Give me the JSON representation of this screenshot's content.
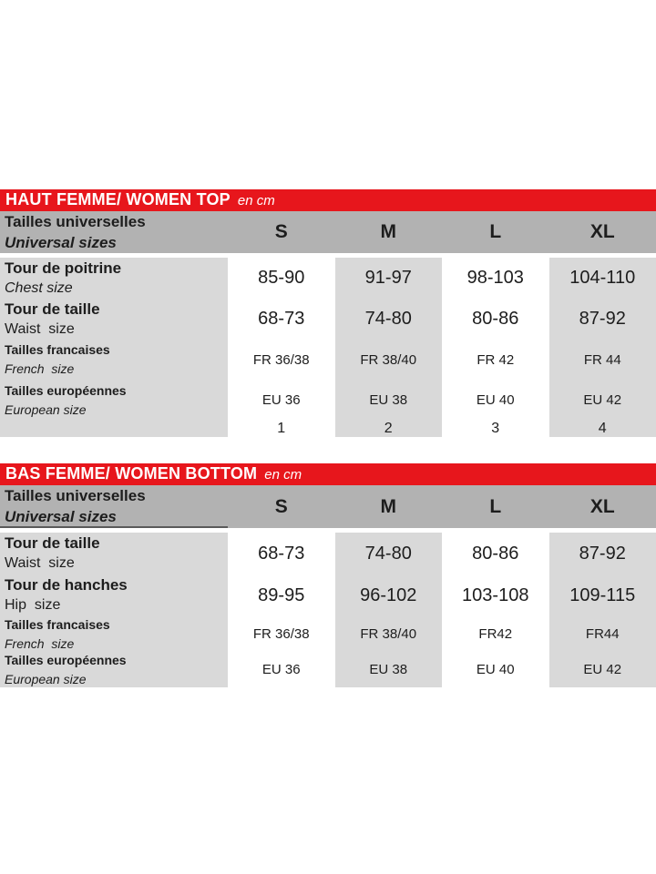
{
  "colors": {
    "red": "#e7161c",
    "header_gray": "#b2b2b2",
    "cell_gray": "#d9d9d9",
    "text": "#1d1d1d",
    "page_bg": "#ffffff"
  },
  "table_top": {
    "title": "HAUT FEMME/ WOMEN TOP",
    "unit": "en cm",
    "header": {
      "label_fr": "Tailles universelles",
      "label_en": "Universal sizes",
      "sizes": [
        "S",
        "M",
        "L",
        "XL"
      ]
    },
    "rows": [
      {
        "fr": "Tour de poitrine",
        "en": "Chest size",
        "values": [
          "85-90",
          "91-97",
          "98-103",
          "104-110"
        ]
      },
      {
        "fr": "Tour de taille",
        "en": "Waist  size",
        "values": [
          "68-73",
          "74-80",
          "80-86",
          "87-92"
        ]
      },
      {
        "fr": "Tailles francaises",
        "en": "French  size",
        "values": [
          "FR 36/38",
          "FR 38/40",
          "FR 42",
          "FR 44"
        ]
      },
      {
        "fr": "Tailles européennes",
        "en": "European size",
        "values": [
          "EU 36",
          "EU 38",
          "EU 40",
          "EU 42"
        ]
      }
    ],
    "numbers": [
      "1",
      "2",
      "3",
      "4"
    ]
  },
  "table_bottom": {
    "title": "BAS FEMME/ WOMEN BOTTOM",
    "unit": "en cm",
    "header": {
      "label_fr": "Tailles universelles",
      "label_en": "Universal sizes",
      "sizes": [
        "S",
        "M",
        "L",
        "XL"
      ]
    },
    "rows": [
      {
        "fr": "Tour de taille",
        "en": "Waist  size",
        "values": [
          "68-73",
          "74-80",
          "80-86",
          "87-92"
        ]
      },
      {
        "fr": "Tour de hanches",
        "en": "Hip  size",
        "values": [
          "89-95",
          "96-102",
          "103-108",
          "109-115"
        ]
      },
      {
        "fr": "Tailles francaises",
        "en": "French  size",
        "values": [
          "FR 36/38",
          "FR 38/40",
          "FR42",
          "FR44"
        ]
      },
      {
        "fr": "Tailles européennes",
        "en": "European size",
        "values": [
          "EU 36",
          "EU 38",
          "EU 40",
          "EU 42"
        ]
      }
    ]
  }
}
